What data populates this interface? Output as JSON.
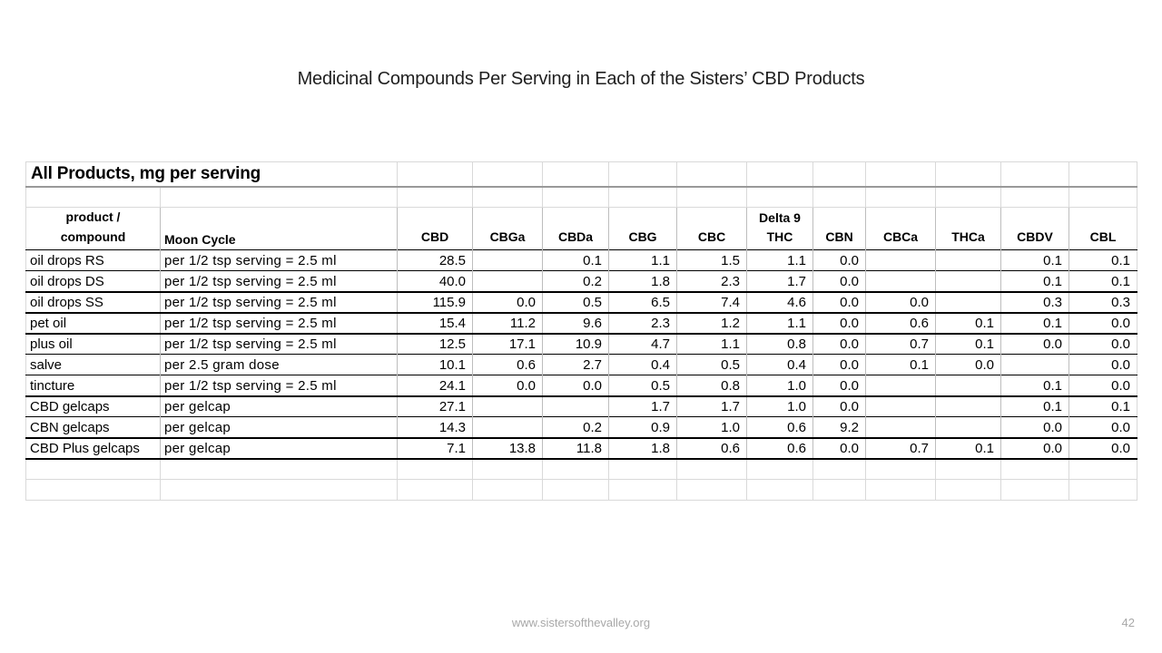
{
  "slide": {
    "title": "Medicinal Compounds Per Serving in Each of the Sisters’ CBD Products",
    "footer": {
      "url": "www.sistersofthevalley.org",
      "page_number": "42"
    }
  },
  "table": {
    "banner": "All Products, mg per serving",
    "product_header": "product /\ncompound",
    "moon_cycle_header": "Moon Cycle",
    "compound_columns": [
      "CBD",
      "CBGa",
      "CBDa",
      "CBG",
      "CBC",
      "Delta 9\nTHC",
      "CBN",
      "CBCa",
      "THCa",
      "CBDV",
      "CBL"
    ],
    "rows": [
      {
        "product": "oil drops RS",
        "serving": "per 1/2 tsp serving = 2.5 ml",
        "values": [
          "28.5",
          "",
          "0.1",
          "1.1",
          "1.5",
          "1.1",
          "0.0",
          "",
          "",
          "0.1",
          "0.1"
        ]
      },
      {
        "product": "oil drops DS",
        "serving": "per 1/2 tsp serving = 2.5 ml",
        "values": [
          "40.0",
          "",
          "0.2",
          "1.8",
          "2.3",
          "1.7",
          "0.0",
          "",
          "",
          "0.1",
          "0.1"
        ]
      },
      {
        "product": "oil drops SS",
        "serving": "per 1/2 tsp serving = 2.5 ml",
        "values": [
          "115.9",
          "0.0",
          "0.5",
          "6.5",
          "7.4",
          "4.6",
          "0.0",
          "0.0",
          "",
          "0.3",
          "0.3"
        ]
      },
      {
        "product": "pet oil",
        "serving": "per 1/2 tsp serving = 2.5 ml",
        "values": [
          "15.4",
          "11.2",
          "9.6",
          "2.3",
          "1.2",
          "1.1",
          "0.0",
          "0.6",
          "0.1",
          "0.1",
          "0.0"
        ]
      },
      {
        "product": "plus oil",
        "serving": "per 1/2 tsp serving = 2.5 ml",
        "values": [
          "12.5",
          "17.1",
          "10.9",
          "4.7",
          "1.1",
          "0.8",
          "0.0",
          "0.7",
          "0.1",
          "0.0",
          "0.0"
        ]
      },
      {
        "product": "salve",
        "serving": "per 2.5 gram dose",
        "values": [
          "10.1",
          "0.6",
          "2.7",
          "0.4",
          "0.5",
          "0.4",
          "0.0",
          "0.1",
          "0.0",
          "",
          "0.0"
        ]
      },
      {
        "product": "tincture",
        "serving": "per 1/2 tsp serving = 2.5 ml",
        "values": [
          "24.1",
          "0.0",
          "0.0",
          "0.5",
          "0.8",
          "1.0",
          "0.0",
          "",
          "",
          "0.1",
          "0.0"
        ]
      },
      {
        "product": "CBD gelcaps",
        "serving": "per gelcap",
        "values": [
          "27.1",
          "",
          "",
          "1.7",
          "1.7",
          "1.0",
          "0.0",
          "",
          "",
          "0.1",
          "0.1"
        ]
      },
      {
        "product": "CBN gelcaps",
        "serving": "per gelcap",
        "values": [
          "14.3",
          "",
          "0.2",
          "0.9",
          "1.0",
          "0.6",
          "9.2",
          "",
          "",
          "0.0",
          "0.0"
        ]
      },
      {
        "product": "CBD Plus gelcaps",
        "serving": "per gelcap",
        "values": [
          "7.1",
          "13.8",
          "11.8",
          "1.8",
          "0.6",
          "0.6",
          "0.0",
          "0.7",
          "0.1",
          "0.0",
          "0.0"
        ]
      }
    ]
  },
  "colors": {
    "grid_light": "#d9d9d9",
    "grid_medium": "#bdbdbd",
    "row_border": "#000000",
    "banner_separator": "#999999",
    "footer_text": "#a8a8a8",
    "title_text": "#1f1f1f"
  }
}
